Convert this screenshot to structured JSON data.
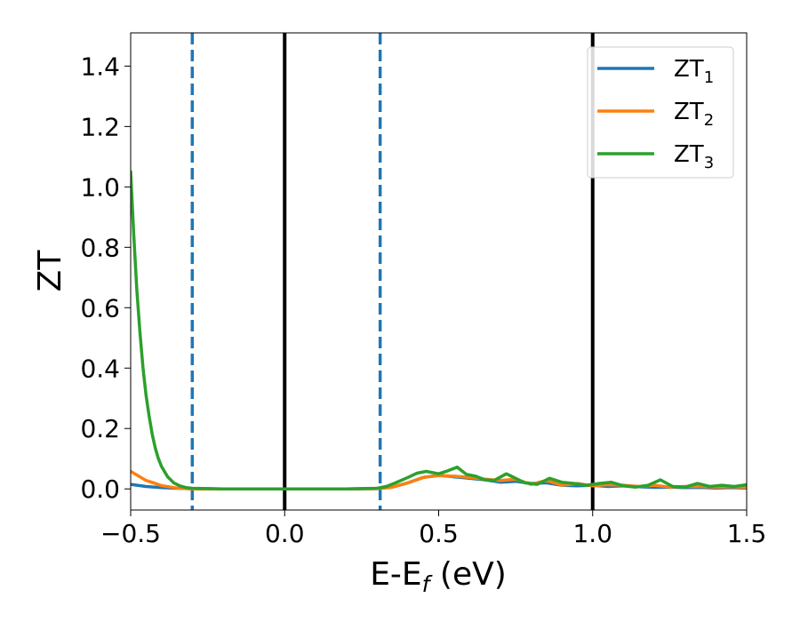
{
  "chart_data": {
    "type": "line",
    "title": "",
    "xlabel": "E-E",
    "xlabel_sub": "f",
    "xlabel_unit": " (eV)",
    "ylabel": "ZT",
    "xlim": [
      -0.5,
      1.5
    ],
    "ylim": [
      -0.07,
      1.51
    ],
    "xticks": [
      -0.5,
      0.0,
      0.5,
      1.0,
      1.5
    ],
    "xtick_labels": [
      "−0.5",
      "0.0",
      "0.5",
      "1.0",
      "1.5"
    ],
    "yticks": [
      0.0,
      0.2,
      0.4,
      0.6,
      0.8,
      1.0,
      1.2,
      1.4
    ],
    "ytick_labels": [
      "0.0",
      "0.2",
      "0.4",
      "0.6",
      "0.8",
      "1.0",
      "1.2",
      "1.4"
    ],
    "grid": false,
    "legend_position": "top-right",
    "vlines": [
      {
        "x": -0.3,
        "style": "dashed",
        "color": "#1f77b4"
      },
      {
        "x": 0.0,
        "style": "solid",
        "color": "#000000"
      },
      {
        "x": 0.31,
        "style": "dashed",
        "color": "#1f77b4"
      },
      {
        "x": 1.0,
        "style": "solid",
        "color": "#000000"
      }
    ],
    "series": [
      {
        "name": "ZT",
        "name_sub": "1",
        "color": "#1f77b4",
        "x": [
          -0.5,
          -0.45,
          -0.4,
          -0.35,
          -0.3,
          -0.2,
          -0.1,
          0.0,
          0.1,
          0.2,
          0.3,
          0.35,
          0.4,
          0.45,
          0.5,
          0.55,
          0.6,
          0.65,
          0.7,
          0.75,
          0.8,
          0.85,
          0.9,
          0.95,
          1.0,
          1.05,
          1.1,
          1.15,
          1.2,
          1.25,
          1.3,
          1.35,
          1.4,
          1.45,
          1.5
        ],
        "y": [
          0.015,
          0.008,
          0.004,
          0.002,
          0.001,
          0.0,
          0.0,
          0.0,
          0.0,
          0.0,
          0.001,
          0.006,
          0.02,
          0.038,
          0.045,
          0.04,
          0.035,
          0.03,
          0.022,
          0.025,
          0.018,
          0.02,
          0.012,
          0.01,
          0.012,
          0.008,
          0.01,
          0.007,
          0.005,
          0.006,
          0.004,
          0.005,
          0.003,
          0.004,
          0.003
        ]
      },
      {
        "name": "ZT",
        "name_sub": "2",
        "color": "#ff7f0e",
        "x": [
          -0.5,
          -0.47,
          -0.45,
          -0.42,
          -0.4,
          -0.37,
          -0.35,
          -0.32,
          -0.3,
          -0.2,
          -0.1,
          0.0,
          0.1,
          0.2,
          0.3,
          0.35,
          0.4,
          0.45,
          0.5,
          0.55,
          0.6,
          0.65,
          0.7,
          0.75,
          0.8,
          0.85,
          0.9,
          0.95,
          1.0,
          1.05,
          1.1,
          1.15,
          1.2,
          1.25,
          1.3,
          1.35,
          1.4,
          1.45,
          1.5
        ],
        "y": [
          0.058,
          0.04,
          0.028,
          0.018,
          0.011,
          0.006,
          0.003,
          0.001,
          0.0,
          0.0,
          0.0,
          0.0,
          0.0,
          0.0,
          0.001,
          0.006,
          0.02,
          0.038,
          0.044,
          0.042,
          0.038,
          0.032,
          0.028,
          0.032,
          0.015,
          0.028,
          0.012,
          0.018,
          0.01,
          0.014,
          0.012,
          0.008,
          0.012,
          0.006,
          0.008,
          0.008,
          0.006,
          0.007,
          0.005
        ]
      },
      {
        "name": "ZT",
        "name_sub": "3",
        "color": "#2ca02c",
        "x": [
          -0.5,
          -0.49,
          -0.48,
          -0.47,
          -0.46,
          -0.45,
          -0.44,
          -0.43,
          -0.42,
          -0.41,
          -0.4,
          -0.38,
          -0.36,
          -0.34,
          -0.32,
          -0.3,
          -0.2,
          -0.1,
          0.0,
          0.1,
          0.2,
          0.3,
          0.33,
          0.36,
          0.4,
          0.43,
          0.46,
          0.5,
          0.53,
          0.56,
          0.59,
          0.62,
          0.65,
          0.68,
          0.72,
          0.75,
          0.78,
          0.82,
          0.86,
          0.9,
          0.94,
          0.98,
          1.02,
          1.06,
          1.1,
          1.14,
          1.18,
          1.22,
          1.26,
          1.3,
          1.34,
          1.38,
          1.42,
          1.46,
          1.5
        ],
        "y": [
          1.05,
          0.84,
          0.66,
          0.52,
          0.4,
          0.31,
          0.24,
          0.18,
          0.135,
          0.1,
          0.075,
          0.04,
          0.02,
          0.01,
          0.004,
          0.002,
          0.0,
          0.0,
          0.0,
          0.0,
          0.0,
          0.002,
          0.008,
          0.02,
          0.038,
          0.052,
          0.058,
          0.05,
          0.06,
          0.072,
          0.048,
          0.042,
          0.03,
          0.028,
          0.05,
          0.035,
          0.02,
          0.015,
          0.035,
          0.022,
          0.018,
          0.012,
          0.018,
          0.022,
          0.01,
          0.006,
          0.012,
          0.03,
          0.008,
          0.006,
          0.018,
          0.008,
          0.012,
          0.008,
          0.014
        ]
      }
    ]
  }
}
